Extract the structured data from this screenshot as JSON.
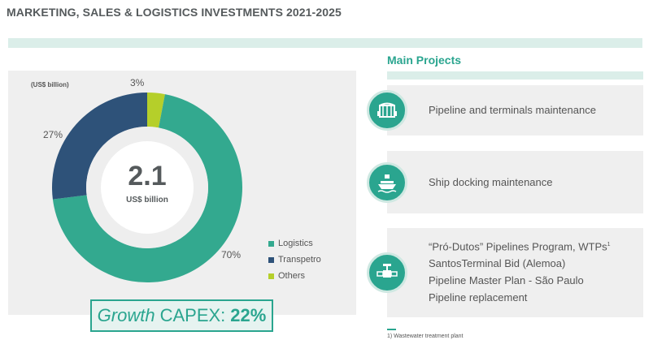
{
  "title": "MARKETING, SALES & LOGISTICS INVESTMENTS 2021-2025",
  "chart_data": {
    "type": "pie",
    "unit_label": "(US$ billion)",
    "center_value": "2.1",
    "center_unit": "US$ billion",
    "slices": [
      {
        "name": "Logistics",
        "value": 70,
        "label": "70%",
        "color": "#33a98f"
      },
      {
        "name": "Transpetro",
        "value": 27,
        "label": "27%",
        "color": "#2e5279"
      },
      {
        "name": "Others",
        "value": 3,
        "label": "3%",
        "color": "#b5cf2a"
      }
    ]
  },
  "growth": {
    "prefix": "Growth",
    "metric": "CAPEX:",
    "value": "22%"
  },
  "main_projects": {
    "title": "Main Projects",
    "items": [
      {
        "icon": "pipeline-terminal-icon",
        "lines": [
          "Pipeline and terminals maintenance"
        ]
      },
      {
        "icon": "ship-icon",
        "lines": [
          "Ship docking maintenance"
        ]
      },
      {
        "icon": "pipeline-valve-icon",
        "lines": [
          "“Pró-Dutos” Pipelines Program, WTPs",
          "SantosTerminal Bid  (Alemoa)",
          "Pipeline Master Plan - São Paulo",
          "Pipeline replacement"
        ],
        "sup": "1"
      }
    ]
  },
  "footnote": "1) Wastewater treatment plant"
}
